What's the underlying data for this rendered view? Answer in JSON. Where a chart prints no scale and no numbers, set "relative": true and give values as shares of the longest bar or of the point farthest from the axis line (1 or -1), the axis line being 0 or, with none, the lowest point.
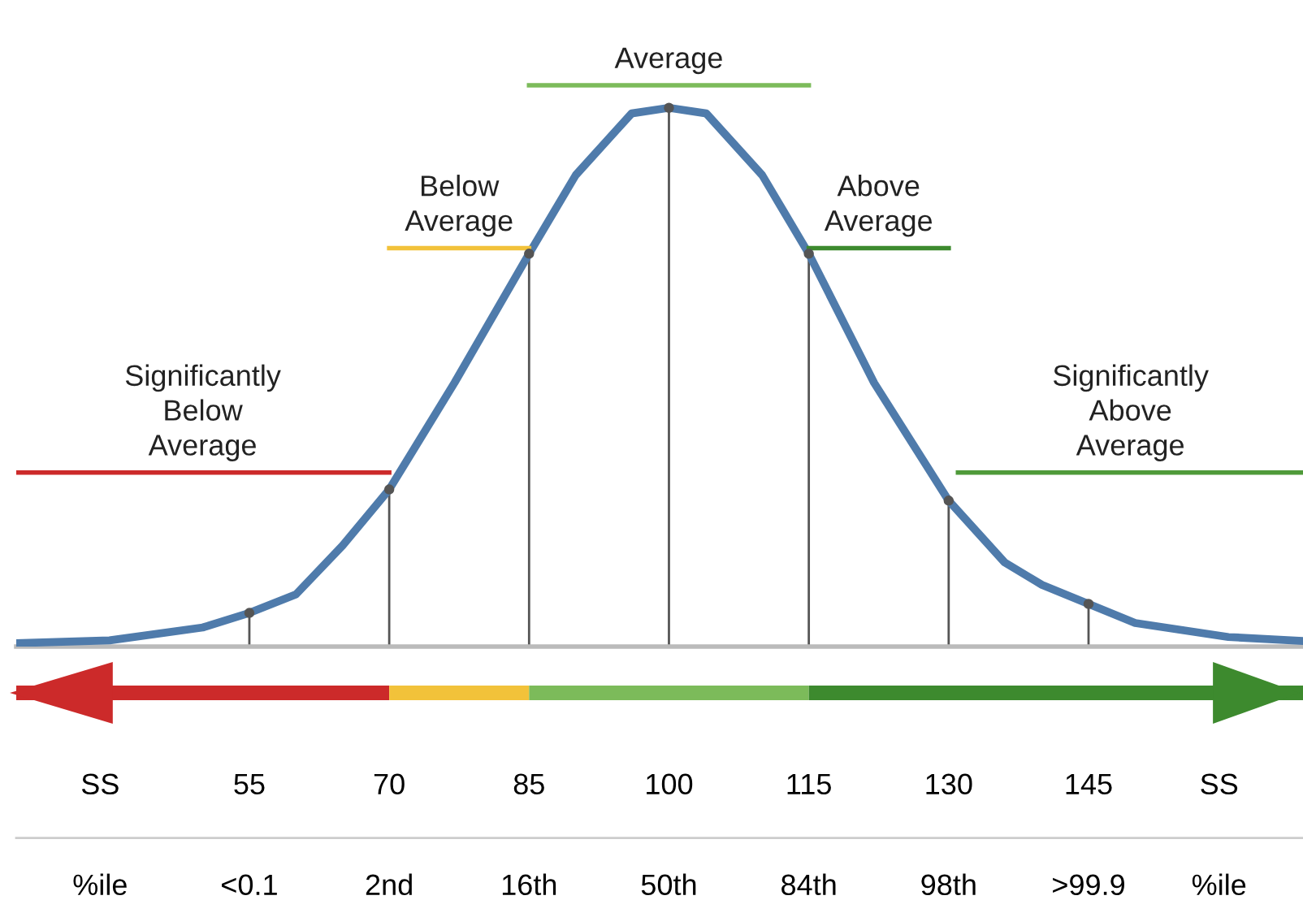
{
  "chart_data": {
    "type": "line",
    "relative": true,
    "xlim": [
      30,
      168
    ],
    "xticks": [
      {
        "value": 39,
        "label": "SS"
      },
      55,
      70,
      85,
      100,
      115,
      130,
      145,
      {
        "value": 159,
        "label": "SS"
      }
    ],
    "annotations": [
      "%ile",
      "<0.1",
      "2nd",
      "16th",
      "50th",
      "84th",
      "98th",
      ">99.9",
      "%ile"
    ],
    "series": [
      {
        "color": "#4f7bab",
        "x": [
          30,
          40,
          50,
          55,
          60,
          65,
          70,
          77,
          85,
          90,
          96,
          100,
          104,
          110,
          115,
          122,
          130,
          136,
          140,
          145,
          150,
          160,
          168
        ],
        "values": [
          0.006,
          0.011,
          0.034,
          0.06,
          0.093,
          0.18,
          0.28,
          0.47,
          0.7,
          0.84,
          0.95,
          0.96,
          0.95,
          0.84,
          0.7,
          0.47,
          0.26,
          0.15,
          0.11,
          0.076,
          0.042,
          0.017,
          0.01
        ]
      },
      {
        "type": "lollipop",
        "marker": "circle",
        "color": "#555555",
        "x": [
          55,
          70,
          85,
          100,
          115,
          130,
          145
        ],
        "values": [
          0.06,
          0.28,
          0.7,
          0.96,
          0.7,
          0.26,
          0.076
        ]
      },
      {
        "name": "Significantly\nBelow\nAverage",
        "color": "#cc2a2a",
        "x": [
          30,
          70
        ],
        "values": [
          0.31,
          0.31
        ]
      },
      {
        "name": "Below\nAverage",
        "color": "#f2c23a",
        "x": [
          70,
          85
        ],
        "values": [
          0.71,
          0.71
        ]
      },
      {
        "name": "Average",
        "color": "#7cbb5a",
        "x": [
          85,
          115
        ],
        "values": [
          1,
          1
        ]
      },
      {
        "name": "Above\nAverage",
        "color": "#3d8a2e",
        "x": [
          115,
          130
        ],
        "values": [
          0.71,
          0.71
        ]
      },
      {
        "name": "Significantly\nAbove\nAverage",
        "color": "#4f9a3a",
        "x": [
          131,
          168
        ],
        "values": [
          0.31,
          0.31
        ]
      }
    ],
    "grid": false,
    "legend": false,
    "marker": "none",
    "line_style": "solid"
  }
}
